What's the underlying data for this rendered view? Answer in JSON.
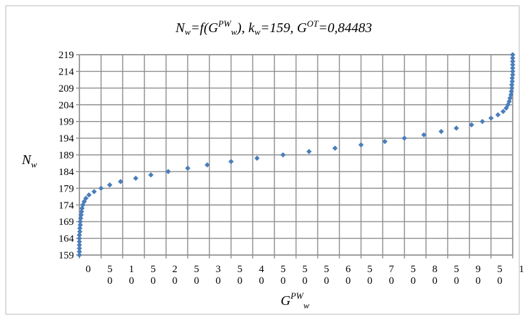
{
  "chart_data": {
    "type": "scatter",
    "title": {
      "parts": [
        "N",
        "w",
        "=f(G",
        "PW",
        "w",
        "), k",
        "w",
        "=159, G",
        "OT",
        "=0,84483"
      ]
    },
    "ylabel": {
      "base": "N",
      "sub": "w"
    },
    "xlabel": {
      "base": "G",
      "sup": "PW",
      "sub": "w"
    },
    "ylim": [
      159,
      219
    ],
    "xlim": [
      0,
      1
    ],
    "yticks": [
      "159",
      "164",
      "169",
      "174",
      "179",
      "184",
      "189",
      "194",
      "199",
      "204",
      "209",
      "214",
      "219"
    ],
    "xticks": [
      {
        "top": "0",
        "bottom": ""
      },
      {
        "top": "5",
        "bottom": "0"
      },
      {
        "top": "1",
        "bottom": "0"
      },
      {
        "top": "5",
        "bottom": "0"
      },
      {
        "top": "2",
        "bottom": "0"
      },
      {
        "top": "5",
        "bottom": "0"
      },
      {
        "top": "3",
        "bottom": "0"
      },
      {
        "top": "5",
        "bottom": "0"
      },
      {
        "top": "4",
        "bottom": "0"
      },
      {
        "top": "5",
        "bottom": "0"
      },
      {
        "top": "5",
        "bottom": "0"
      },
      {
        "top": "5",
        "bottom": "0"
      },
      {
        "top": "6",
        "bottom": "0"
      },
      {
        "top": "5",
        "bottom": "0"
      },
      {
        "top": "7",
        "bottom": "0"
      },
      {
        "top": "5",
        "bottom": "0"
      },
      {
        "top": "8",
        "bottom": "0"
      },
      {
        "top": "5",
        "bottom": "0"
      },
      {
        "top": "9",
        "bottom": "0"
      },
      {
        "top": "5",
        "bottom": "0"
      },
      {
        "top": "1",
        "bottom": ""
      }
    ],
    "grid": true,
    "marker_color": "#4a7ebb",
    "series": [
      {
        "x": [
          0.0,
          0.0,
          0.0,
          0.0,
          0.0,
          0.0,
          0.0,
          0.001,
          0.001,
          0.002,
          0.002,
          0.003,
          0.004,
          0.005,
          0.006,
          0.008,
          0.011,
          0.015,
          0.022,
          0.034,
          0.05,
          0.07,
          0.095,
          0.13,
          0.165,
          0.205,
          0.25,
          0.295,
          0.35,
          0.41,
          0.47,
          0.53,
          0.59,
          0.65,
          0.705,
          0.75,
          0.795,
          0.835,
          0.87,
          0.905,
          0.93,
          0.95,
          0.966,
          0.978,
          0.985,
          0.989,
          0.992,
          0.994,
          0.996,
          0.997,
          0.998,
          0.998,
          0.999,
          0.999,
          1.0,
          1.0,
          1.0,
          1.0,
          1.0,
          1.0,
          1.0
        ],
        "y": [
          159,
          160,
          161,
          162,
          163,
          164,
          165,
          166,
          167,
          168,
          169,
          170,
          171,
          172,
          173,
          174,
          175,
          176,
          177,
          178,
          179,
          180,
          181,
          182,
          183,
          184,
          185,
          186,
          187,
          188,
          189,
          190,
          191,
          192,
          193,
          194,
          195,
          196,
          197,
          198,
          199,
          200,
          201,
          202,
          203,
          204,
          205,
          206,
          207,
          208,
          209,
          210,
          211,
          212,
          213,
          214,
          215,
          216,
          217,
          218,
          219
        ]
      }
    ]
  }
}
